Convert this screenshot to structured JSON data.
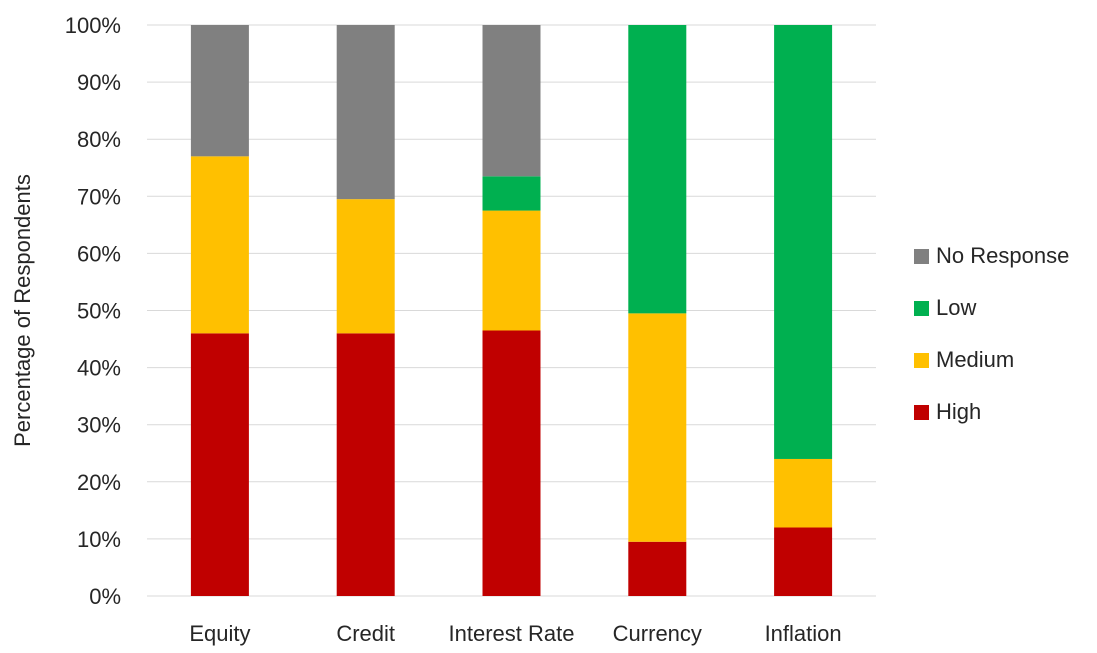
{
  "chart_data": {
    "type": "bar",
    "stacked": true,
    "title": "",
    "xlabel": "",
    "ylabel": "Percentage of Respondents",
    "ylim": [
      0,
      100
    ],
    "yticks": [
      "0%",
      "10%",
      "20%",
      "30%",
      "40%",
      "50%",
      "60%",
      "70%",
      "80%",
      "90%",
      "100%"
    ],
    "grid": true,
    "legend_position": "right",
    "categories": [
      "Equity",
      "Credit",
      "Interest Rate",
      "Currency",
      "Inflation"
    ],
    "series": [
      {
        "name": "High",
        "color": "#C00000",
        "values": [
          46,
          46,
          46.5,
          9.5,
          12
        ]
      },
      {
        "name": "Medium",
        "color": "#FFC000",
        "values": [
          31,
          23.5,
          21,
          40,
          12
        ]
      },
      {
        "name": "Low",
        "color": "#00B050",
        "values": [
          0,
          0,
          6,
          50.5,
          76
        ]
      },
      {
        "name": "No Response",
        "color": "#808080",
        "values": [
          23,
          30.5,
          26.5,
          0,
          0
        ]
      }
    ]
  }
}
